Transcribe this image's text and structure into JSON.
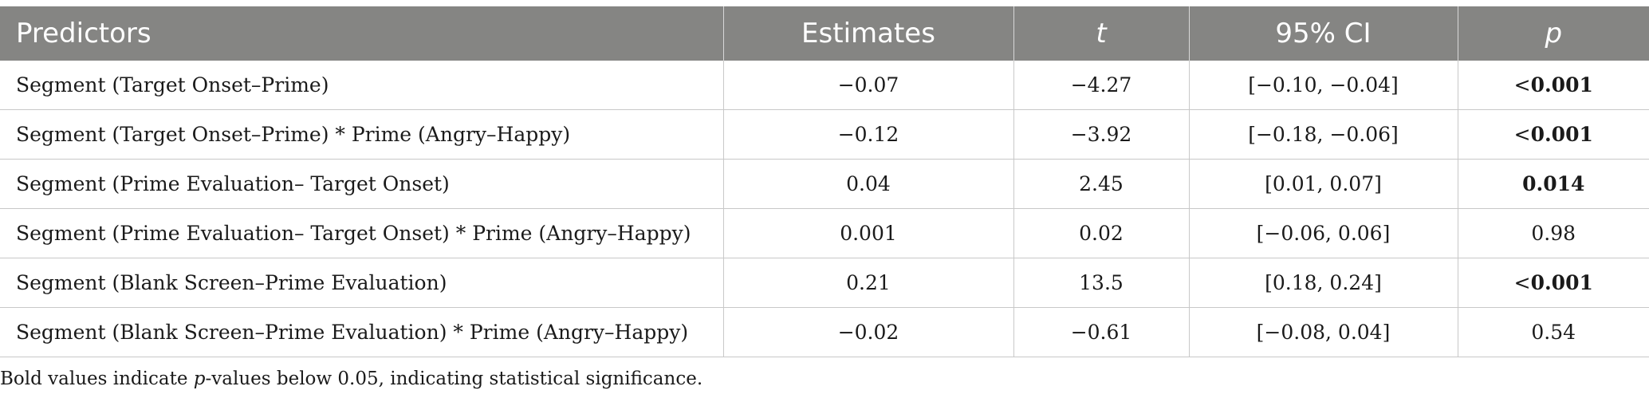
{
  "table": {
    "headers": [
      "Predictors",
      "Estimates",
      "t",
      "95% CI",
      "p"
    ],
    "rows": [
      {
        "predictor": "Segment (Target Onset–Prime)",
        "estimate": "−0.07",
        "t": "−4.27",
        "ci": "[−0.10, −0.04]",
        "p_prefix": "<",
        "p_value": "0.001",
        "p_bold": true
      },
      {
        "predictor": "Segment (Target Onset–Prime) * Prime (Angry–Happy)",
        "estimate": "−0.12",
        "t": "−3.92",
        "ci": "[−0.18, −0.06]",
        "p_prefix": "<",
        "p_value": "0.001",
        "p_bold": true
      },
      {
        "predictor": "Segment (Prime Evaluation– Target Onset)",
        "estimate": "0.04",
        "t": "2.45",
        "ci": "[0.01, 0.07]",
        "p_prefix": "",
        "p_value": "0.014",
        "p_bold": true
      },
      {
        "predictor": "Segment (Prime Evaluation– Target Onset) * Prime (Angry–Happy)",
        "estimate": "0.001",
        "t": "0.02",
        "ci": "[−0.06, 0.06]",
        "p_prefix": "",
        "p_value": "0.98",
        "p_bold": false
      },
      {
        "predictor": "Segment (Blank Screen–Prime Evaluation)",
        "estimate": "0.21",
        "t": "13.5",
        "ci": "[0.18, 0.24]",
        "p_prefix": "<",
        "p_value": "0.001",
        "p_bold": true
      },
      {
        "predictor": "Segment (Blank Screen–Prime Evaluation) * Prime (Angry–Happy)",
        "estimate": "−0.02",
        "t": "−0.61",
        "ci": "[−0.08, 0.04]",
        "p_prefix": "",
        "p_value": "0.54",
        "p_bold": false
      }
    ]
  },
  "footnote": {
    "before": "Bold values indicate ",
    "italic": "p",
    "after": "-values below 0.05, indicating statistical significance."
  },
  "colors": {
    "header_bg": "#858583",
    "header_text": "#ffffff",
    "grid": "#c8c8c8"
  }
}
